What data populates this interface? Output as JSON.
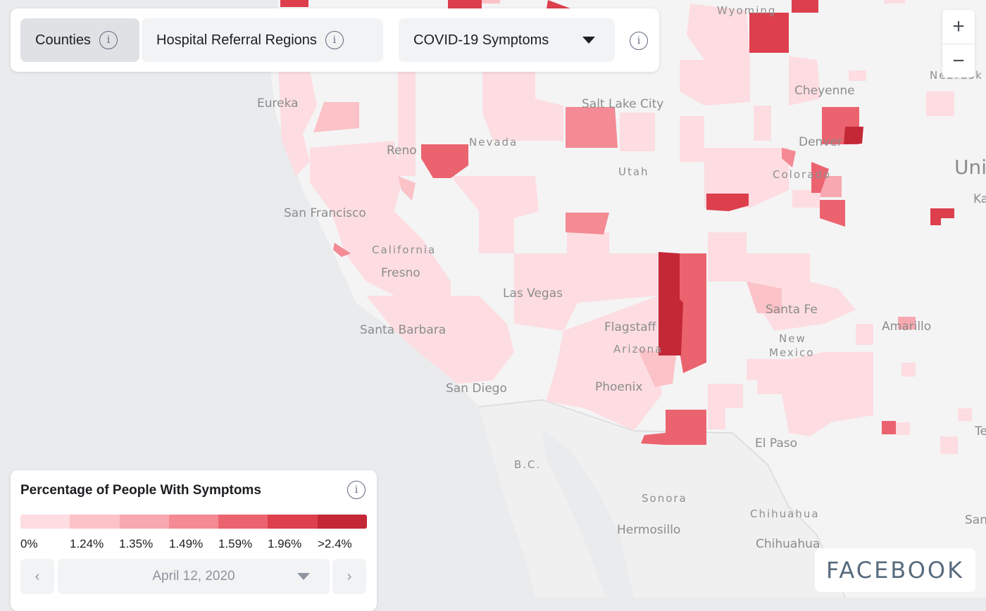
{
  "toolbar": {
    "tabs": [
      {
        "label": "Counties",
        "selected": true
      },
      {
        "label": "Hospital Referral Regions",
        "selected": false
      }
    ],
    "dropdown_value": "COVID-19 Symptoms",
    "info_glyph": "i"
  },
  "zoom": {
    "in_label": "+",
    "out_label": "−"
  },
  "legend": {
    "title": "Percentage of People With Symptoms",
    "colors": [
      "#fddde1",
      "#fbc2c7",
      "#f8a8b0",
      "#f38a94",
      "#eb636f",
      "#dd3f4d",
      "#c42836"
    ],
    "labels": [
      "0%",
      "1.24%",
      "1.35%",
      "1.49%",
      "1.59%",
      "1.96%",
      ">2.4%"
    ],
    "prev_label": "‹",
    "next_label": "›",
    "date": "April 12, 2020"
  },
  "map": {
    "colors": {
      "ocean": "#e9ebed",
      "land": "#f4f4f5",
      "mexico": "#f0f0f1"
    },
    "places": [
      "Wyoming",
      "Eureka",
      "Salt Lake City",
      "Cheyenne",
      "Nebrask",
      "Nevada",
      "Reno",
      "Utah",
      "Denver",
      "Colorado",
      "Uni",
      "Ka",
      "San Francisco",
      "California",
      "Fresno",
      "Las Vegas",
      "Santa Fe",
      "Flagstaff",
      "Amarillo",
      "Santa Barbara",
      "New",
      "Mexico",
      "Arizona",
      "San Diego",
      "Phoenix",
      "El Paso",
      "Te",
      "B.C.",
      "Sonora",
      "Chihuahua",
      "Hermosillo",
      "Chihuahua",
      "San"
    ]
  },
  "brand": "FACEBOOK"
}
